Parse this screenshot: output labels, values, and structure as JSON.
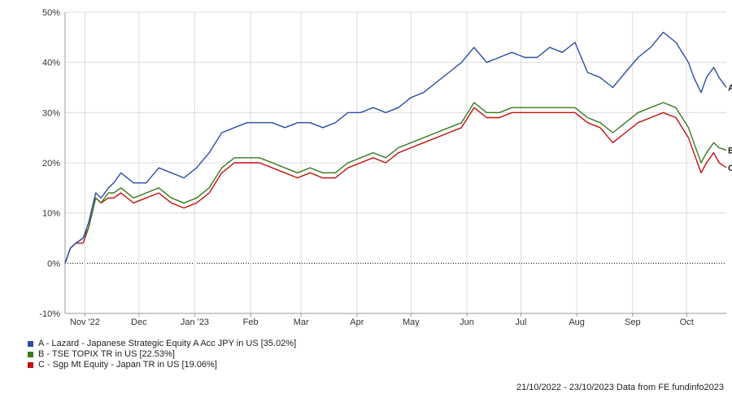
{
  "chart_data": {
    "type": "line",
    "y_tick_labels": [
      "50%",
      "40%",
      "30%",
      "20%",
      "10%",
      "0%",
      "-10%"
    ],
    "y_ticks": [
      50,
      40,
      30,
      20,
      10,
      0,
      -10
    ],
    "ylim": [
      -10,
      50
    ],
    "x_tick_labels": [
      "Nov '22",
      "Dec",
      "Jan '23",
      "Feb",
      "Mar",
      "Apr",
      "May",
      "Jun",
      "Jul",
      "Aug",
      "Sep",
      "Oct"
    ],
    "x_ticks": [
      "2022-11-01",
      "2022-12-01",
      "2023-01-01",
      "2023-02-01",
      "2023-03-01",
      "2023-04-01",
      "2023-05-01",
      "2023-06-01",
      "2023-07-01",
      "2023-08-01",
      "2023-09-01",
      "2023-10-01"
    ],
    "xlim": [
      "2022-10-21",
      "2023-10-23"
    ],
    "x": [
      "2022-10-21",
      "2022-10-24",
      "2022-10-27",
      "2022-10-31",
      "2022-11-03",
      "2022-11-07",
      "2022-11-10",
      "2022-11-14",
      "2022-11-17",
      "2022-11-21",
      "2022-11-28",
      "2022-12-05",
      "2022-12-12",
      "2022-12-19",
      "2022-12-26",
      "2023-01-02",
      "2023-01-09",
      "2023-01-16",
      "2023-01-23",
      "2023-01-30",
      "2023-02-06",
      "2023-02-13",
      "2023-02-20",
      "2023-02-27",
      "2023-03-06",
      "2023-03-13",
      "2023-03-20",
      "2023-03-27",
      "2023-04-03",
      "2023-04-10",
      "2023-04-17",
      "2023-04-24",
      "2023-05-01",
      "2023-05-08",
      "2023-05-15",
      "2023-05-22",
      "2023-05-29",
      "2023-06-05",
      "2023-06-12",
      "2023-06-19",
      "2023-06-26",
      "2023-07-03",
      "2023-07-10",
      "2023-07-17",
      "2023-07-24",
      "2023-07-31",
      "2023-08-07",
      "2023-08-14",
      "2023-08-21",
      "2023-08-28",
      "2023-09-04",
      "2023-09-11",
      "2023-09-18",
      "2023-09-25",
      "2023-10-02",
      "2023-10-05",
      "2023-10-09",
      "2023-10-12",
      "2023-10-16",
      "2023-10-19",
      "2023-10-23"
    ],
    "series": [
      {
        "name": "A",
        "color": "#2b4fa3",
        "values": [
          0,
          3,
          4,
          5,
          8,
          14,
          13,
          15,
          16,
          18,
          16,
          16,
          19,
          18,
          17,
          19,
          22,
          26,
          27,
          28,
          28,
          28,
          27,
          28,
          28,
          27,
          28,
          30,
          30,
          31,
          30,
          31,
          33,
          34,
          36,
          38,
          40,
          43,
          40,
          41,
          42,
          41,
          41,
          43,
          42,
          44,
          38,
          37,
          35,
          38,
          41,
          43,
          46,
          44,
          40,
          37,
          34,
          37,
          39,
          37,
          35.02
        ]
      },
      {
        "name": "B",
        "color": "#3a7a1e",
        "values": [
          0,
          3,
          4,
          5,
          7,
          13,
          12,
          14,
          14,
          15,
          13,
          14,
          15,
          13,
          12,
          13,
          15,
          19,
          21,
          21,
          21,
          20,
          19,
          18,
          19,
          18,
          18,
          20,
          21,
          22,
          21,
          23,
          24,
          25,
          26,
          27,
          28,
          32,
          30,
          30,
          31,
          31,
          31,
          31,
          31,
          31,
          29,
          28,
          26,
          28,
          30,
          31,
          32,
          31,
          27,
          24,
          20,
          22,
          24,
          23,
          22.53
        ]
      },
      {
        "name": "C",
        "color": "#c0110e",
        "values": [
          0,
          3,
          4,
          4,
          7,
          13,
          12,
          13,
          13,
          14,
          12,
          13,
          14,
          12,
          11,
          12,
          14,
          18,
          20,
          20,
          20,
          19,
          18,
          17,
          18,
          17,
          17,
          19,
          20,
          21,
          20,
          22,
          23,
          24,
          25,
          26,
          27,
          31,
          29,
          29,
          30,
          30,
          30,
          30,
          30,
          30,
          28,
          27,
          24,
          26,
          28,
          29,
          30,
          29,
          25,
          22,
          18,
          20,
          22,
          20,
          19.06
        ]
      }
    ],
    "end_labels": [
      "A",
      "B",
      "C"
    ],
    "grid": true,
    "zero_line": "dotted",
    "legend_position": "bottom-left"
  },
  "legend": [
    {
      "label": "A - Lazard - Japanese Strategic Equity A Acc JPY in US [35.02%]",
      "color": "#2b4fa3"
    },
    {
      "label": "B - TSE TOPIX TR in US [22.53%]",
      "color": "#3a7a1e"
    },
    {
      "label": "C - Sgp Mt Equity - Japan TR in US [19.06%]",
      "color": "#c0110e"
    }
  ],
  "footer": "21/10/2022 - 23/10/2023 Data from FE fundinfo2023"
}
